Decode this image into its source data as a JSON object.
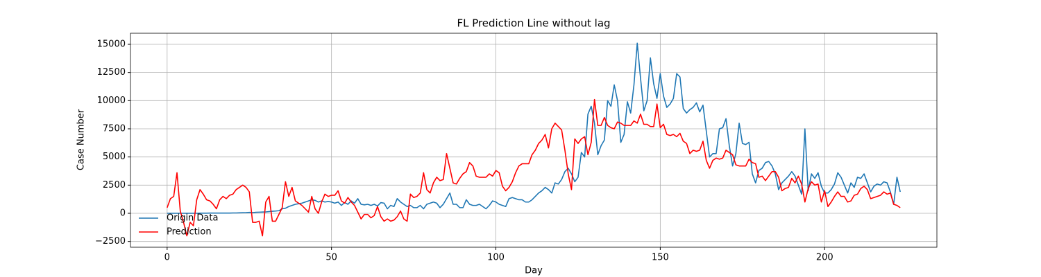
{
  "chart_data": {
    "type": "line",
    "title": "FL Prediction Line without lag",
    "x_label": "Day",
    "y_label": "Case Number",
    "x": [
      0,
      1,
      2,
      3,
      4,
      5,
      6,
      7,
      8,
      9,
      10,
      11,
      12,
      13,
      14,
      15,
      16,
      17,
      18,
      19,
      20,
      21,
      22,
      23,
      24,
      25,
      26,
      27,
      28,
      29,
      30,
      31,
      32,
      33,
      34,
      35,
      36,
      37,
      38,
      39,
      40,
      41,
      42,
      43,
      44,
      45,
      46,
      47,
      48,
      49,
      50,
      51,
      52,
      53,
      54,
      55,
      56,
      57,
      58,
      59,
      60,
      61,
      62,
      63,
      64,
      65,
      66,
      67,
      68,
      69,
      70,
      71,
      72,
      73,
      74,
      75,
      76,
      77,
      78,
      79,
      80,
      81,
      82,
      83,
      84,
      85,
      86,
      87,
      88,
      89,
      90,
      91,
      92,
      93,
      94,
      95,
      96,
      97,
      98,
      99,
      100,
      101,
      102,
      103,
      104,
      105,
      106,
      107,
      108,
      109,
      110,
      111,
      112,
      113,
      114,
      115,
      116,
      117,
      118,
      119,
      120,
      121,
      122,
      123,
      124,
      125,
      126,
      127,
      128,
      129,
      130,
      131,
      132,
      133,
      134,
      135,
      136,
      137,
      138,
      139,
      140,
      141,
      142,
      143,
      144,
      145,
      146,
      147,
      148,
      149,
      150,
      151,
      152,
      153,
      154,
      155,
      156,
      157,
      158,
      159,
      160,
      161,
      162,
      163,
      164,
      165,
      166,
      167,
      168,
      169,
      170,
      171,
      172,
      173,
      174,
      175,
      176,
      177,
      178,
      179,
      180,
      181,
      182,
      183,
      184,
      185,
      186,
      187,
      188,
      189,
      190,
      191,
      192,
      193,
      194,
      195,
      196,
      197,
      198,
      199,
      200,
      201,
      202,
      203,
      204,
      205,
      206,
      207,
      208,
      209,
      210,
      211,
      212,
      213,
      214,
      215,
      216,
      217,
      218,
      219,
      220,
      221,
      222,
      223
    ],
    "series": [
      {
        "name": "Origin Data",
        "color": "#1f77b4",
        "values": [
          0,
          0,
          0,
          0,
          0,
          0,
          0,
          0,
          0,
          0,
          10,
          10,
          10,
          20,
          20,
          20,
          20,
          20,
          20,
          20,
          30,
          30,
          40,
          50,
          60,
          80,
          60,
          90,
          100,
          110,
          120,
          150,
          180,
          200,
          230,
          400,
          450,
          600,
          700,
          800,
          850,
          900,
          1000,
          1100,
          1200,
          1150,
          1000,
          1100,
          1000,
          1050,
          1000,
          900,
          1000,
          700,
          950,
          800,
          1100,
          900,
          1300,
          800,
          750,
          800,
          700,
          800,
          650,
          950,
          900,
          400,
          700,
          600,
          1300,
          1000,
          800,
          600,
          700,
          500,
          500,
          700,
          400,
          800,
          900,
          1000,
          900,
          500,
          800,
          1300,
          1800,
          800,
          800,
          500,
          500,
          1200,
          800,
          700,
          700,
          800,
          600,
          400,
          700,
          1100,
          1000,
          800,
          700,
          600,
          1300,
          1400,
          1300,
          1200,
          1200,
          1000,
          1000,
          1200,
          1500,
          1800,
          2000,
          2300,
          2100,
          1800,
          2700,
          2600,
          3000,
          3700,
          4000,
          3500,
          2800,
          3200,
          5400,
          5000,
          8800,
          9500,
          8000,
          5200,
          6000,
          6500,
          10000,
          9500,
          11400,
          10000,
          6300,
          7000,
          9900,
          8900,
          11400,
          15100,
          12000,
          9100,
          10000,
          13800,
          11500,
          10200,
          12400,
          10400,
          9400,
          9700,
          10200,
          12400,
          12100,
          9300,
          8900,
          9200,
          9400,
          9800,
          9000,
          9600,
          7300,
          5000,
          5300,
          5300,
          7500,
          7600,
          8400,
          6000,
          4200,
          5300,
          8000,
          6200,
          6100,
          6300,
          3500,
          2700,
          3800,
          4000,
          4500,
          4600,
          4200,
          3500,
          2100,
          2700,
          3000,
          3300,
          3700,
          3300,
          2500,
          1700,
          7500,
          2000,
          3500,
          3100,
          3600,
          2400,
          1800,
          1800,
          2100,
          2600,
          3600,
          3200,
          2500,
          1800,
          2700,
          2300,
          3200,
          3100,
          3500,
          2700,
          1900,
          2400,
          2600,
          2500,
          2800,
          2700,
          1900,
          800,
          3200,
          1900
        ]
      },
      {
        "name": "Prediction",
        "color": "red",
        "values": [
          500,
          1300,
          1500,
          3600,
          200,
          -800,
          -2000,
          -800,
          -1100,
          1200,
          2100,
          1700,
          1200,
          1100,
          800,
          400,
          1200,
          1500,
          1300,
          1600,
          1700,
          2100,
          2300,
          2500,
          2300,
          1900,
          -800,
          -800,
          -700,
          -2000,
          1000,
          1500,
          -700,
          -700,
          -100,
          500,
          2800,
          1500,
          2300,
          1100,
          900,
          700,
          400,
          100,
          1500,
          400,
          0,
          1000,
          1700,
          1500,
          1600,
          1600,
          2000,
          1100,
          900,
          1400,
          1000,
          700,
          100,
          -500,
          -100,
          -100,
          -400,
          -200,
          600,
          -300,
          -700,
          -500,
          -700,
          -600,
          -300,
          200,
          -500,
          -700,
          1700,
          1400,
          1500,
          1800,
          3600,
          2100,
          1800,
          2700,
          3200,
          2900,
          3000,
          5300,
          4000,
          2700,
          2600,
          3100,
          3500,
          3700,
          4500,
          4200,
          3300,
          3200,
          3200,
          3200,
          3500,
          3300,
          3800,
          3600,
          2400,
          2000,
          2300,
          2800,
          3600,
          4200,
          4400,
          4400,
          4400,
          5200,
          5600,
          6200,
          6500,
          7000,
          5800,
          7500,
          8000,
          7700,
          7400,
          5600,
          3500,
          2100,
          6600,
          6200,
          6600,
          6800,
          5200,
          6300,
          10100,
          7800,
          7800,
          8500,
          7800,
          7600,
          7500,
          8100,
          8000,
          7800,
          7800,
          7800,
          8200,
          8000,
          8800,
          7900,
          7900,
          7700,
          7700,
          9700,
          7600,
          7900,
          7000,
          6900,
          7000,
          6800,
          7100,
          6400,
          6200,
          5300,
          5600,
          5500,
          5600,
          6400,
          4700,
          4000,
          4700,
          4900,
          4800,
          4900,
          5600,
          5400,
          5200,
          4300,
          4200,
          4200,
          4200,
          4800,
          4500,
          4400,
          3200,
          3300,
          2900,
          3300,
          3700,
          3700,
          3200,
          2000,
          2200,
          2300,
          3100,
          2700,
          3300,
          2600,
          1000,
          2200,
          2800,
          2500,
          2600,
          1000,
          2000,
          600,
          1000,
          1500,
          1900,
          1500,
          1500,
          1000,
          1100,
          1600,
          1700,
          2200,
          2400,
          2100,
          1300,
          1400,
          1500,
          1600,
          1900,
          1700,
          1800,
          800,
          700,
          500
        ]
      }
    ],
    "xlim": [
      -11.15,
      234.15
    ],
    "ylim": [
      -3012,
      15983
    ],
    "xticks": [
      0,
      50,
      100,
      150,
      200
    ],
    "yticks": [
      {
        "value": -2500,
        "label": "−2500"
      },
      0,
      2500,
      5000,
      7500,
      10000,
      12500,
      15000
    ],
    "grid": true,
    "legend": "lower left"
  }
}
